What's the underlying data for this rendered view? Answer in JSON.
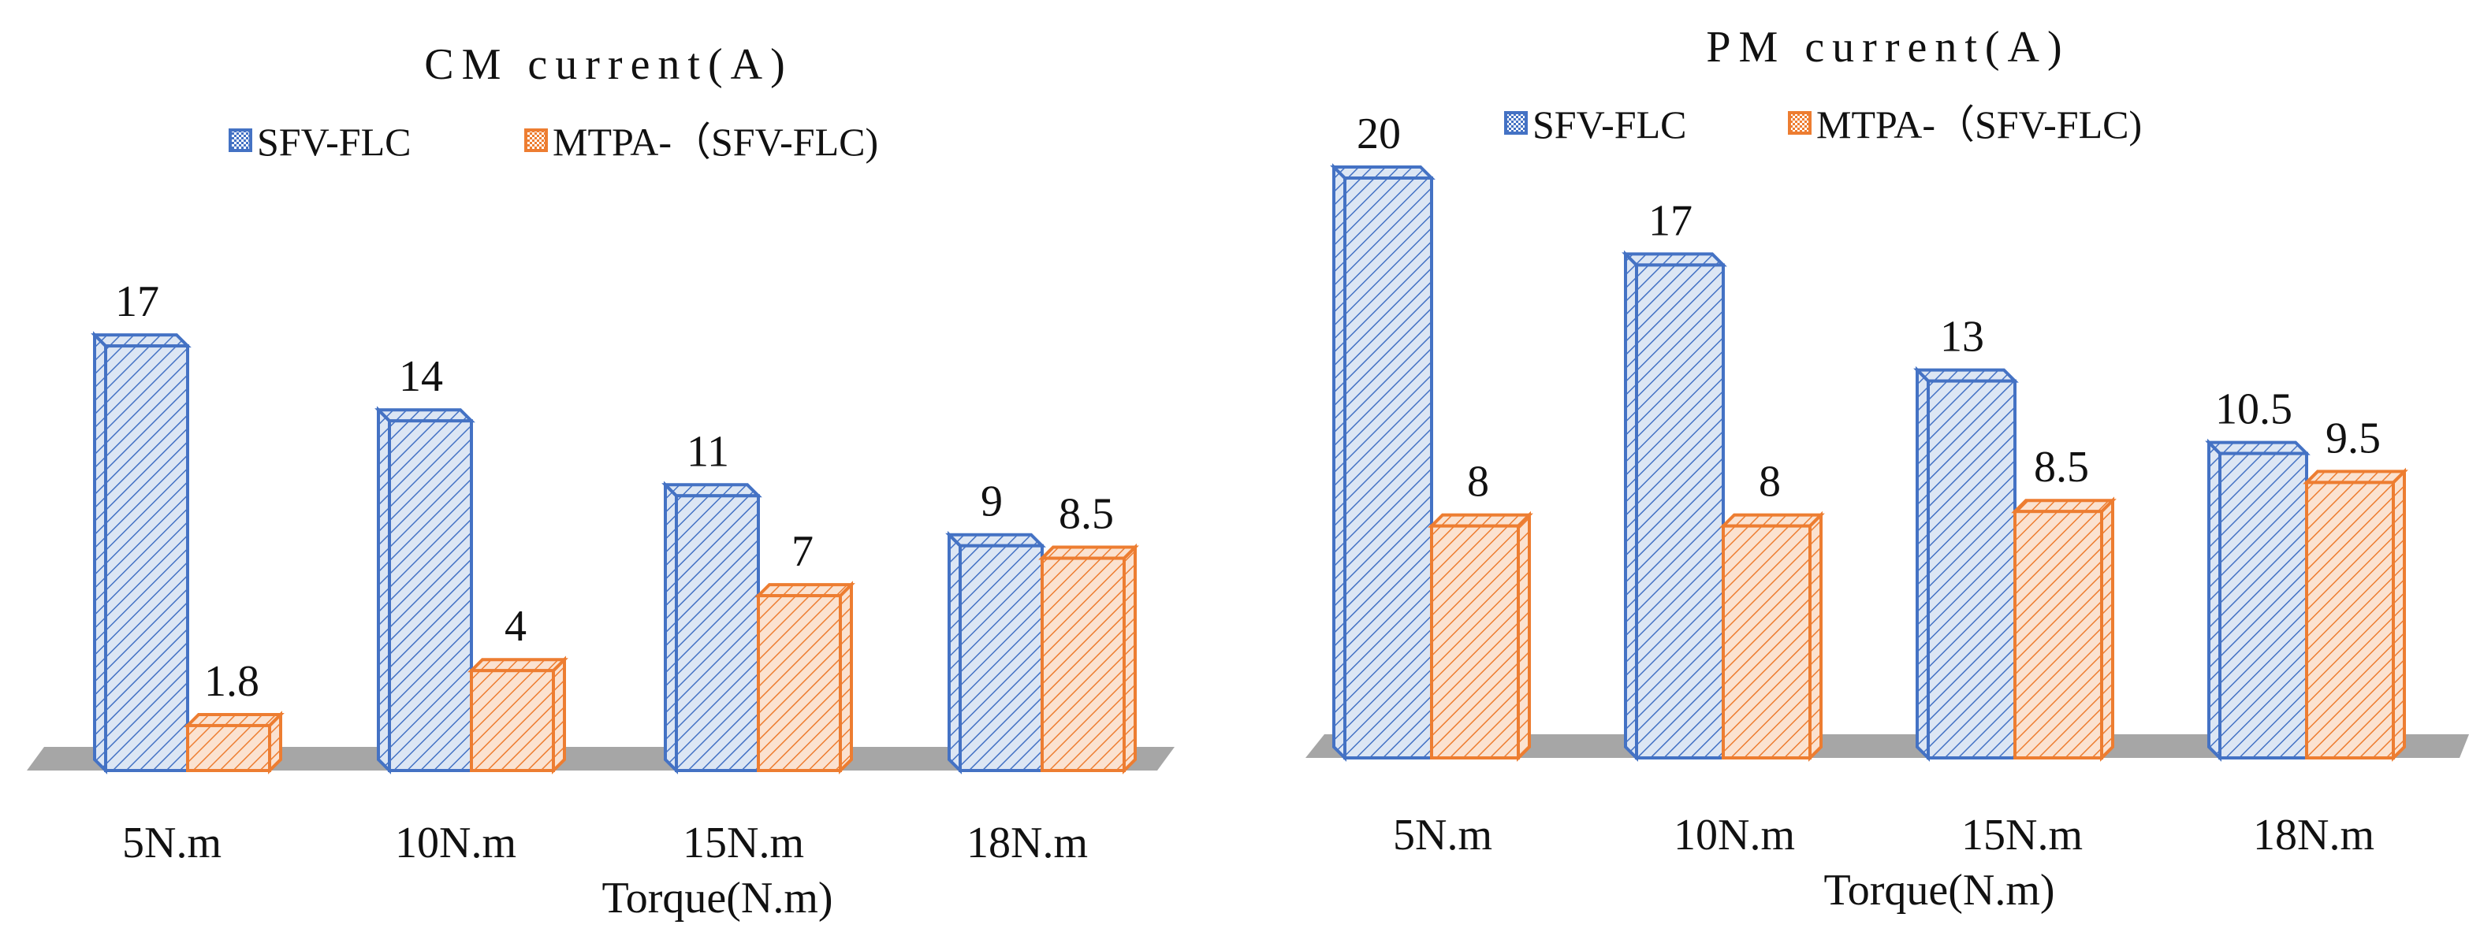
{
  "colors": {
    "series1": "#4472C4",
    "series1_fill": "#DCE6F4",
    "series2": "#ED7D31",
    "series2_fill": "#FBE2D0",
    "floor": "#A6A6A6",
    "text": "#111111"
  },
  "chart_data": [
    {
      "type": "bar",
      "title": "CM current(A)",
      "xlabel": "Torque(N.m)",
      "ylabel": "",
      "categories": [
        "5N.m",
        "10N.m",
        "15N.m",
        "18N.m"
      ],
      "series": [
        {
          "name": "SFV-FLC",
          "values": [
            17,
            14,
            11,
            9
          ],
          "labels": [
            "17",
            "14",
            "11",
            "9"
          ]
        },
        {
          "name": "MTPA-（SFV-FLC)",
          "values": [
            1.8,
            4,
            7,
            8.5
          ],
          "labels": [
            "1.8",
            "4",
            "7",
            "8.5"
          ]
        }
      ],
      "ylim": [
        0,
        20
      ],
      "grid": false,
      "legend": "top-center"
    },
    {
      "type": "bar",
      "title": "PM current(A)",
      "xlabel": "Torque(N.m)",
      "ylabel": "",
      "categories": [
        "5N.m",
        "10N.m",
        "15N.m",
        "18N.m"
      ],
      "series": [
        {
          "name": "SFV-FLC",
          "values": [
            20,
            17,
            13,
            10.5
          ],
          "labels": [
            "20",
            "17",
            "13",
            "10.5"
          ]
        },
        {
          "name": "MTPA-（SFV-FLC)",
          "values": [
            8,
            8,
            8.5,
            9.5
          ],
          "labels": [
            "8",
            "8",
            "8.5",
            "9.5"
          ]
        }
      ],
      "ylim": [
        0,
        20
      ],
      "grid": false,
      "legend": "top-center"
    }
  ]
}
